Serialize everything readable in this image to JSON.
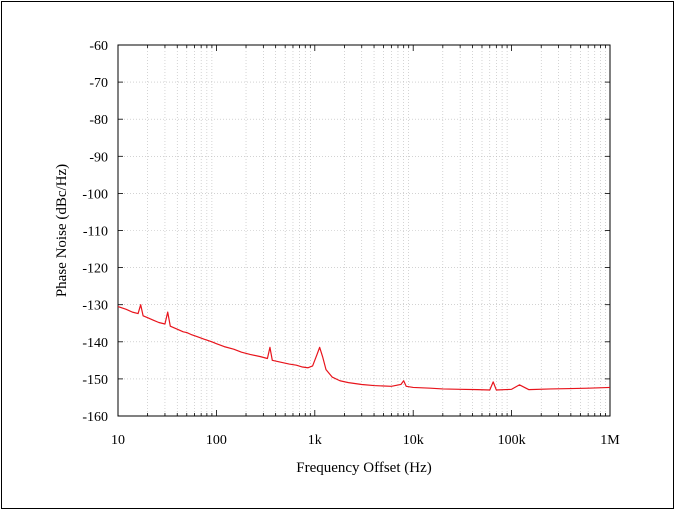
{
  "chart_data": {
    "type": "line",
    "title": "",
    "xlabel": "Frequency Offset (Hz)",
    "ylabel": "Phase Noise (dBc/Hz)",
    "x_scale": "log",
    "xlim": [
      10,
      1000000
    ],
    "ylim": [
      -160,
      -60
    ],
    "grid": true,
    "legend": "none",
    "x_ticks": [
      {
        "value": 10,
        "label": "10"
      },
      {
        "value": 100,
        "label": "100"
      },
      {
        "value": 1000,
        "label": "1k"
      },
      {
        "value": 10000,
        "label": "10k"
      },
      {
        "value": 100000,
        "label": "100k"
      },
      {
        "value": 1000000,
        "label": "1M"
      }
    ],
    "y_ticks": [
      {
        "value": -60,
        "label": "-60"
      },
      {
        "value": -70,
        "label": "-70"
      },
      {
        "value": -80,
        "label": "-80"
      },
      {
        "value": -90,
        "label": "-90"
      },
      {
        "value": -100,
        "label": "-100"
      },
      {
        "value": -110,
        "label": "-110"
      },
      {
        "value": -120,
        "label": "-120"
      },
      {
        "value": -130,
        "label": "-130"
      },
      {
        "value": -140,
        "label": "-140"
      },
      {
        "value": -150,
        "label": "-150"
      },
      {
        "value": -160,
        "label": "-160"
      }
    ],
    "series": [
      {
        "color": "#e8141c",
        "points": [
          [
            10,
            -130.5
          ],
          [
            12,
            -131.2
          ],
          [
            14,
            -132.0
          ],
          [
            16,
            -132.4
          ],
          [
            17,
            -130.0
          ],
          [
            18,
            -133.0
          ],
          [
            20,
            -133.5
          ],
          [
            23,
            -134.2
          ],
          [
            26,
            -134.8
          ],
          [
            30,
            -135.2
          ],
          [
            32,
            -132.0
          ],
          [
            34,
            -135.8
          ],
          [
            40,
            -136.6
          ],
          [
            46,
            -137.3
          ],
          [
            50,
            -137.5
          ],
          [
            55,
            -138.0
          ],
          [
            65,
            -138.7
          ],
          [
            75,
            -139.3
          ],
          [
            90,
            -140.0
          ],
          [
            100,
            -140.5
          ],
          [
            120,
            -141.3
          ],
          [
            150,
            -142.0
          ],
          [
            180,
            -142.8
          ],
          [
            220,
            -143.4
          ],
          [
            280,
            -144.0
          ],
          [
            330,
            -144.5
          ],
          [
            350,
            -141.5
          ],
          [
            370,
            -145.0
          ],
          [
            450,
            -145.5
          ],
          [
            550,
            -146.0
          ],
          [
            650,
            -146.3
          ],
          [
            750,
            -146.8
          ],
          [
            850,
            -147.0
          ],
          [
            950,
            -146.5
          ],
          [
            1050,
            -143.5
          ],
          [
            1120,
            -141.5
          ],
          [
            1200,
            -144.0
          ],
          [
            1300,
            -147.5
          ],
          [
            1500,
            -149.5
          ],
          [
            1800,
            -150.5
          ],
          [
            2200,
            -151.0
          ],
          [
            3000,
            -151.5
          ],
          [
            4000,
            -151.8
          ],
          [
            6000,
            -152.0
          ],
          [
            7500,
            -151.5
          ],
          [
            8000,
            -150.5
          ],
          [
            8500,
            -152.0
          ],
          [
            10000,
            -152.3
          ],
          [
            15000,
            -152.5
          ],
          [
            20000,
            -152.7
          ],
          [
            30000,
            -152.8
          ],
          [
            45000,
            -152.9
          ],
          [
            60000,
            -153.0
          ],
          [
            65000,
            -150.8
          ],
          [
            70000,
            -153.0
          ],
          [
            100000,
            -152.8
          ],
          [
            120000,
            -151.6
          ],
          [
            150000,
            -152.9
          ],
          [
            250000,
            -152.7
          ],
          [
            400000,
            -152.6
          ],
          [
            600000,
            -152.5
          ],
          [
            1000000,
            -152.3
          ]
        ]
      }
    ]
  }
}
